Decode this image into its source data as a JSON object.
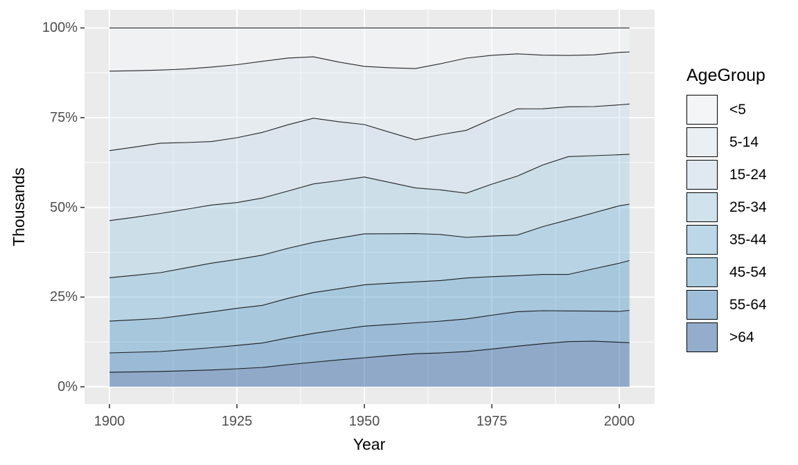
{
  "figure": {
    "background": "#ffffff",
    "panel_background": "#ebebeb",
    "gridline_color": "#ffffff",
    "tick_mark_color": "#333333",
    "axis_text_color": "#4d4d4d",
    "outline_color": "#000000",
    "legend_key_background": "#f2f2f2"
  },
  "chart_data": {
    "type": "area",
    "stacked": true,
    "position": "fill",
    "title": "",
    "xlabel": "Year",
    "ylabel": "Thousands",
    "grid": "on",
    "legend_position": "right",
    "fill_opacity": 0.4,
    "x_axis_range_shown": [
      1895,
      2007
    ],
    "y_axis_range_shown_percent": [
      -5,
      105
    ],
    "xtick_values": [
      1900,
      1925,
      1950,
      1975,
      2000
    ],
    "xtick_labels": [
      "1900",
      "1925",
      "1950",
      "1975",
      "2000"
    ],
    "xtick_minor_values": [
      1912.5,
      1937.5,
      1962.5,
      1987.5
    ],
    "ytick_values_percent": [
      0,
      25,
      50,
      75,
      100
    ],
    "ytick_labels": [
      "0%",
      "25%",
      "50%",
      "75%",
      "100%"
    ],
    "ytick_minor_values_percent": [
      12.5,
      37.5,
      62.5,
      87.5
    ],
    "x": [
      1900,
      1905,
      1910,
      1915,
      1920,
      1925,
      1930,
      1935,
      1940,
      1945,
      1950,
      1955,
      1960,
      1965,
      1970,
      1975,
      1980,
      1985,
      1990,
      1995,
      2000,
      2002
    ],
    "series_note": "stack order bottom-to-top; values are percent share of population per year; bands normalized to 100%",
    "series": [
      {
        "name": ">64",
        "base_color": "#084594",
        "values": [
          4.1,
          4.2,
          4.3,
          4.5,
          4.7,
          5.0,
          5.4,
          6.1,
          6.8,
          7.5,
          8.1,
          8.7,
          9.2,
          9.5,
          9.8,
          10.5,
          11.3,
          11.9,
          12.5,
          12.7,
          12.4,
          12.3
        ]
      },
      {
        "name": "55-64",
        "base_color": "#2171B5",
        "values": [
          5.4,
          5.5,
          5.6,
          5.9,
          6.2,
          6.5,
          6.8,
          7.4,
          8.0,
          8.4,
          8.8,
          8.7,
          8.6,
          8.9,
          9.1,
          9.4,
          9.6,
          9.1,
          8.5,
          8.4,
          8.6,
          9.0
        ]
      },
      {
        "name": "45-54",
        "base_color": "#4292C6",
        "values": [
          8.9,
          9.1,
          9.3,
          9.7,
          10.0,
          10.3,
          10.5,
          10.9,
          11.3,
          11.4,
          11.5,
          11.5,
          11.4,
          11.4,
          11.4,
          10.7,
          10.0,
          10.0,
          10.1,
          11.8,
          13.4,
          13.9
        ]
      },
      {
        "name": "35-44",
        "base_color": "#6BAED6",
        "values": [
          12.2,
          12.5,
          12.8,
          13.2,
          13.6,
          13.6,
          14.0,
          13.8,
          13.9,
          14.1,
          14.2,
          13.8,
          13.4,
          12.9,
          11.3,
          11.3,
          11.3,
          13.2,
          15.1,
          15.6,
          16.0,
          15.7
        ]
      },
      {
        "name": "25-34",
        "base_color": "#9ECAE1",
        "values": [
          16.0,
          16.3,
          16.6,
          16.4,
          16.2,
          15.8,
          15.9,
          15.8,
          16.2,
          16.0,
          15.8,
          14.3,
          12.7,
          12.5,
          12.3,
          14.4,
          16.4,
          17.0,
          17.5,
          15.9,
          14.2,
          13.9
        ]
      },
      {
        "name": "15-24",
        "base_color": "#C6DBEF",
        "values": [
          19.6,
          19.7,
          19.7,
          18.7,
          17.7,
          18.0,
          18.3,
          18.3,
          18.2,
          16.4,
          14.6,
          14.0,
          13.4,
          15.5,
          17.5,
          18.1,
          18.7,
          15.5,
          13.8,
          13.7,
          13.9,
          14.0
        ]
      },
      {
        "name": "5-14",
        "base_color": "#DEEBF7",
        "values": [
          22.3,
          21.4,
          20.5,
          20.6,
          20.8,
          20.3,
          19.8,
          18.4,
          17.0,
          16.6,
          16.2,
          18.0,
          19.8,
          19.9,
          20.1,
          17.7,
          15.3,
          14.8,
          14.2,
          14.4,
          14.6,
          14.5
        ]
      },
      {
        "name": "<5",
        "base_color": "#F7FBFF",
        "values": [
          12.1,
          12.0,
          11.8,
          11.5,
          10.9,
          10.2,
          9.3,
          8.3,
          8.0,
          9.5,
          10.7,
          11.1,
          11.3,
          10.0,
          8.4,
          7.6,
          7.2,
          7.5,
          7.6,
          7.5,
          6.8,
          6.7
        ]
      }
    ],
    "legend": {
      "title": "AgeGroup",
      "items": [
        {
          "label": "<5",
          "base_color": "#F7FBFF"
        },
        {
          "label": "5-14",
          "base_color": "#DEEBF7"
        },
        {
          "label": "15-24",
          "base_color": "#C6DBEF"
        },
        {
          "label": "25-34",
          "base_color": "#9ECAE1"
        },
        {
          "label": "35-44",
          "base_color": "#6BAED6"
        },
        {
          "label": "45-54",
          "base_color": "#4292C6"
        },
        {
          "label": "55-64",
          "base_color": "#2171B5"
        },
        {
          "label": ">64",
          "base_color": "#084594"
        }
      ]
    }
  }
}
